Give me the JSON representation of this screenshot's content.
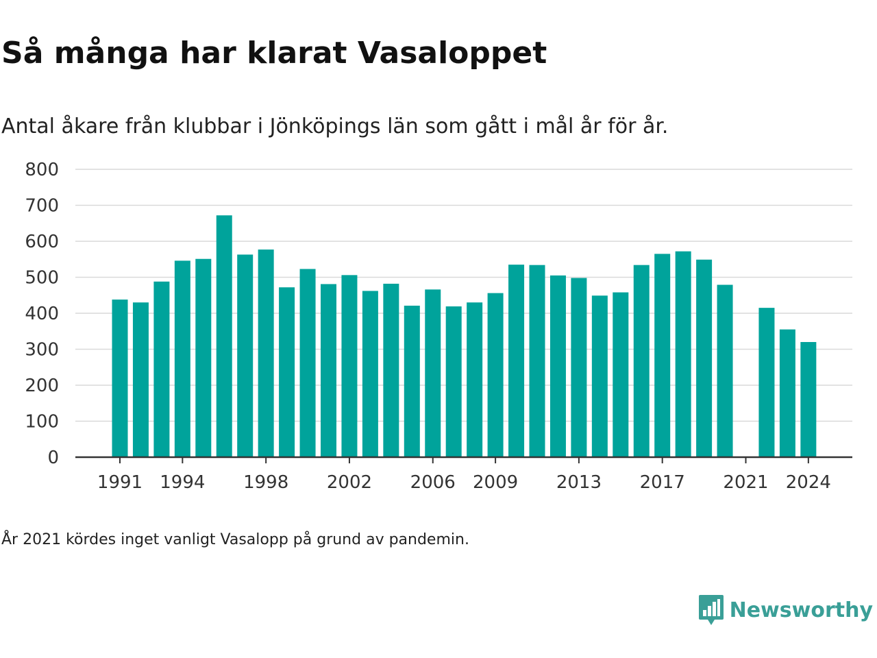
{
  "chart_data": {
    "type": "bar",
    "title": "Så många har klarat Vasaloppet",
    "subtitle": "Antal åkare från klubbar i Jönköpings län som gått i mål år för år.",
    "x": [
      1991,
      1992,
      1993,
      1994,
      1995,
      1996,
      1997,
      1998,
      1999,
      2000,
      2001,
      2002,
      2003,
      2004,
      2005,
      2006,
      2007,
      2008,
      2009,
      2010,
      2011,
      2012,
      2013,
      2014,
      2015,
      2016,
      2017,
      2018,
      2019,
      2020,
      2021,
      2022,
      2023,
      2024
    ],
    "values": [
      438,
      430,
      488,
      546,
      551,
      672,
      563,
      577,
      472,
      523,
      481,
      506,
      462,
      482,
      421,
      466,
      419,
      430,
      456,
      535,
      534,
      505,
      498,
      449,
      458,
      534,
      565,
      572,
      549,
      479,
      null,
      415,
      355,
      320
    ],
    "x_tick_labels": [
      "1991",
      "1994",
      "1998",
      "2002",
      "2006",
      "2009",
      "2013",
      "2017",
      "2021",
      "2024"
    ],
    "y_tick_labels": [
      "0",
      "100",
      "200",
      "300",
      "400",
      "500",
      "600",
      "700",
      "800"
    ],
    "ylim": [
      0,
      800
    ],
    "grid": true,
    "color": "#00a39b"
  },
  "footnote": "År 2021 kördes inget vanligt Vasalopp på grund av pandemin.",
  "brand": {
    "name": "Newsworthy",
    "color": "#3a9f97"
  }
}
